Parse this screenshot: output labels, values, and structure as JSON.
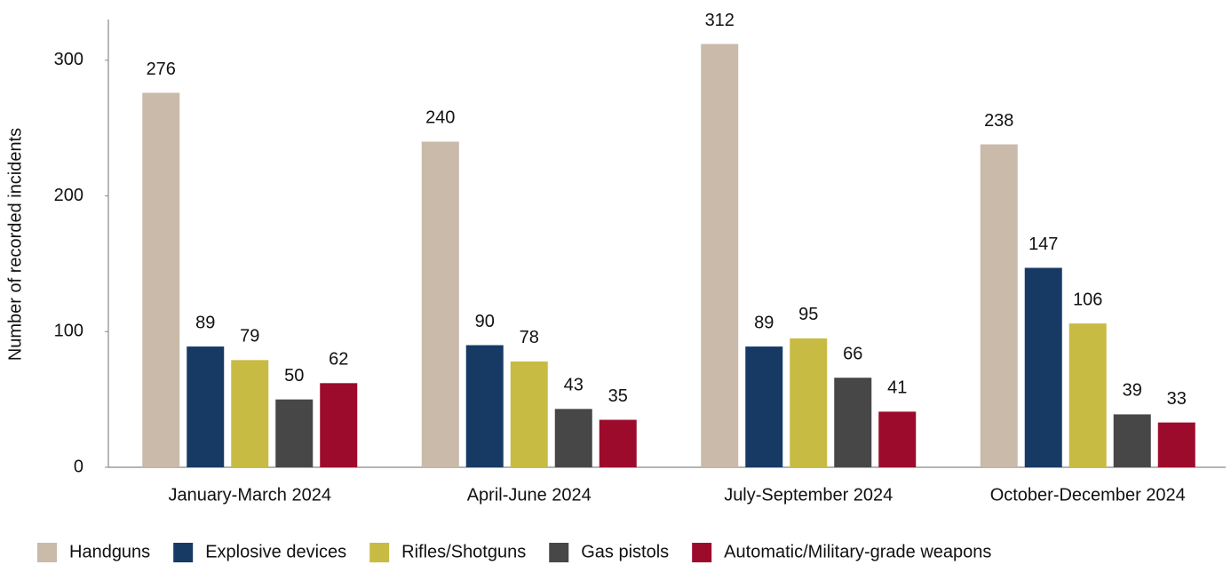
{
  "chart_data": {
    "type": "bar",
    "y_label": "Number of recorded incidents",
    "categories": [
      "January-March 2024",
      "April-June 2024",
      "July-September 2024",
      "October-December 2024"
    ],
    "series": [
      {
        "name": "Handguns",
        "color": "#c9baa9",
        "values": [
          276,
          240,
          312,
          238
        ]
      },
      {
        "name": "Explosive devices",
        "color": "#173a65",
        "values": [
          89,
          90,
          89,
          147
        ]
      },
      {
        "name": "Rifles/Shotguns",
        "color": "#c8bb43",
        "values": [
          79,
          78,
          95,
          106
        ]
      },
      {
        "name": "Gas pistols",
        "color": "#474747",
        "values": [
          50,
          43,
          66,
          39
        ]
      },
      {
        "name": "Automatic/Military-grade weapons",
        "color": "#9c0b2b",
        "values": [
          62,
          35,
          41,
          33
        ]
      }
    ],
    "ylim": [
      0,
      330
    ],
    "yticks": [
      0,
      100,
      200,
      300
    ]
  }
}
